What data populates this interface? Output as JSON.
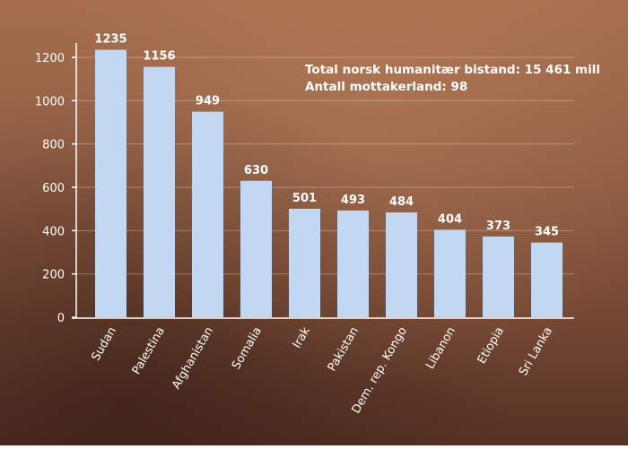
{
  "chart_data": {
    "type": "bar",
    "title": "",
    "xlabel": "",
    "ylabel": "",
    "categories": [
      "Sudan",
      "Palestina",
      "Afghanistan",
      "Somalia",
      "Irak",
      "Pakistan",
      "Dem. rep. Kongo",
      "Libanon",
      "Etiopia",
      "Sri Lanka"
    ],
    "values": [
      1235,
      1156,
      949,
      630,
      501,
      493,
      484,
      404,
      373,
      345
    ],
    "data_labels": [
      "1235",
      "1156",
      "949",
      "630",
      "501",
      "493",
      "484",
      "404",
      "373",
      "345"
    ],
    "ylim": [
      0,
      1200
    ],
    "yticks": [
      "0",
      "200",
      "400",
      "600",
      "800",
      "1000",
      "1200"
    ],
    "grid": true,
    "annotations": [
      "Total  norsk humanitær bistand: 15 461 mill",
      "Antall mottakerland: 98"
    ],
    "colors": {
      "bar": "#c2d7f1",
      "axis": "#ffffff",
      "text": "#ffffff"
    }
  }
}
